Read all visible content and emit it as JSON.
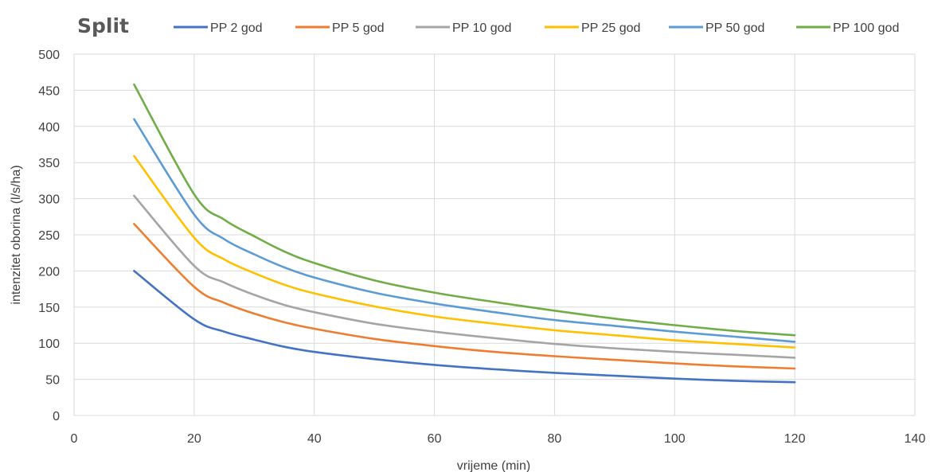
{
  "chart_data": {
    "type": "line",
    "title": "Split",
    "xlabel": "vrijeme (min)",
    "ylabel": "intenzitet oborina (l/s/ha)",
    "xlim": [
      0,
      140
    ],
    "ylim": [
      0,
      500
    ],
    "xticks": [
      0,
      20,
      40,
      60,
      80,
      100,
      120,
      140
    ],
    "yticks": [
      0,
      50,
      100,
      150,
      200,
      250,
      300,
      350,
      400,
      450,
      500
    ],
    "grid": true,
    "legend_position": "top",
    "x": [
      10,
      20,
      25,
      30,
      35,
      40,
      50,
      60,
      70,
      80,
      90,
      100,
      110,
      120
    ],
    "series": [
      {
        "name": "PP 2 god",
        "color": "#4472C4",
        "values": [
          200,
          133,
          116,
          105,
          95,
          88,
          78,
          70,
          64,
          59,
          55,
          51,
          48,
          46
        ]
      },
      {
        "name": "PP 5 god",
        "color": "#ED7D31",
        "values": [
          265,
          178,
          156,
          141,
          129,
          120,
          106,
          96,
          88,
          82,
          77,
          72,
          68,
          65
        ]
      },
      {
        "name": "PP 10 god",
        "color": "#A5A5A5",
        "values": [
          304,
          207,
          184,
          167,
          153,
          143,
          127,
          116,
          107,
          99,
          93,
          88,
          84,
          80
        ]
      },
      {
        "name": "PP 25 god",
        "color": "#FFC000",
        "values": [
          359,
          246,
          216,
          197,
          181,
          169,
          151,
          137,
          127,
          118,
          111,
          104,
          99,
          94
        ]
      },
      {
        "name": "PP 50 god",
        "color": "#5B9BD5",
        "values": [
          410,
          278,
          244,
          223,
          205,
          191,
          170,
          155,
          143,
          132,
          124,
          116,
          109,
          102
        ]
      },
      {
        "name": "PP 100 god",
        "color": "#70AD47",
        "values": [
          458,
          306,
          271,
          248,
          227,
          211,
          187,
          170,
          157,
          145,
          134,
          125,
          117,
          111
        ]
      }
    ]
  }
}
